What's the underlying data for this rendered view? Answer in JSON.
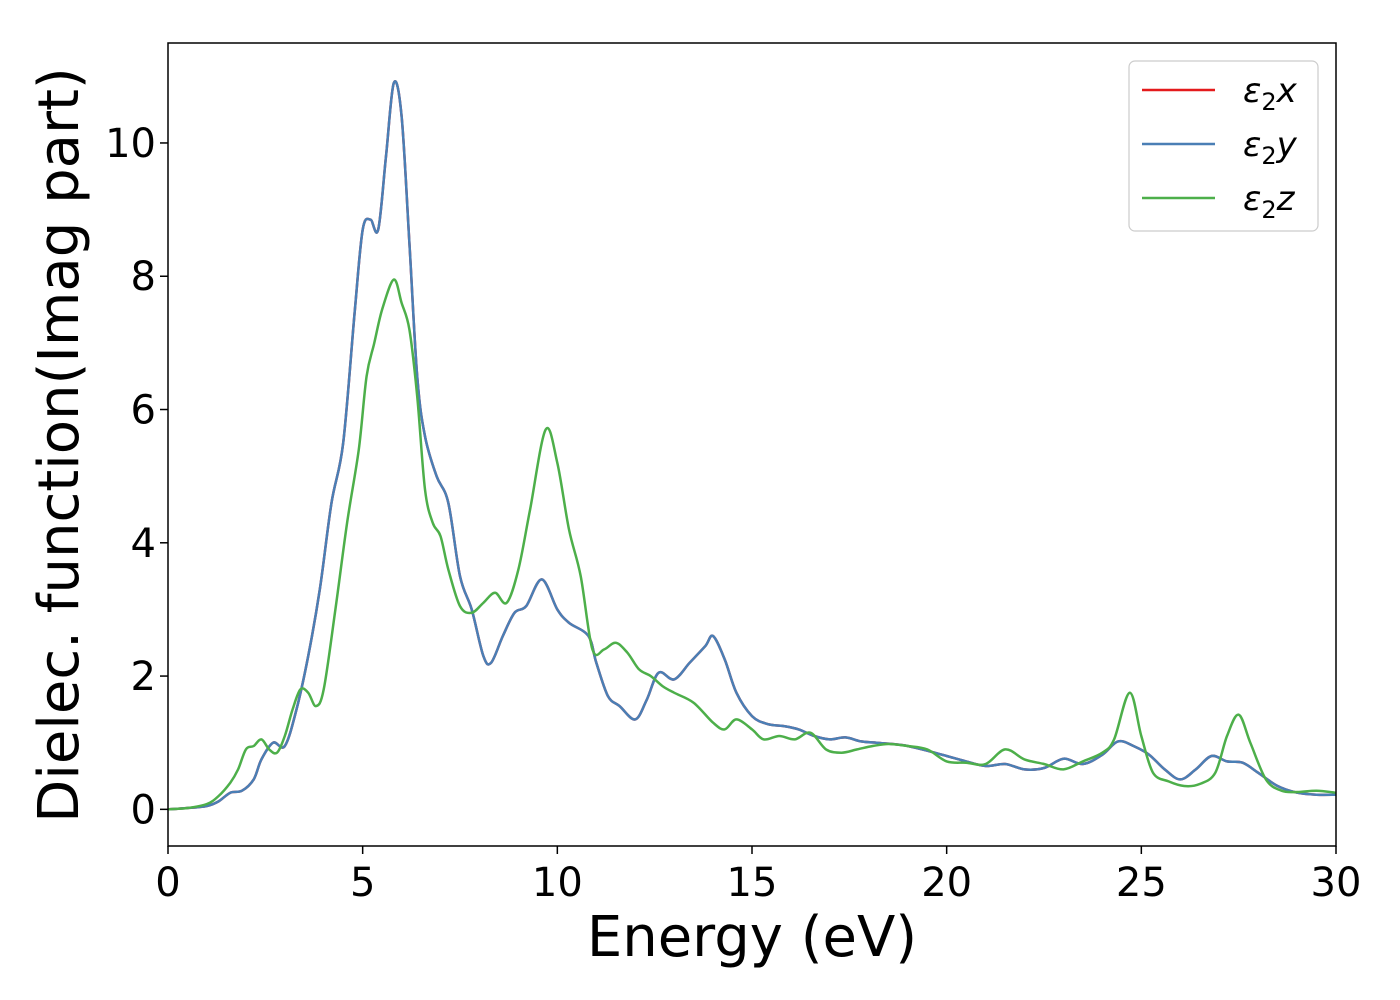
{
  "chart_data": {
    "type": "line",
    "title": "",
    "xlabel": "Energy (eV)",
    "ylabel": "Dielec. function(Imag part)",
    "xlim": [
      0,
      30
    ],
    "ylim": [
      -0.55,
      11.5
    ],
    "xticks": [
      0,
      5,
      10,
      15,
      20,
      25,
      30
    ],
    "yticks": [
      0,
      2,
      4,
      6,
      8,
      10
    ],
    "grid": false,
    "legend_position": "top-right",
    "series": [
      {
        "name": "ε2x",
        "legend_main": "ε",
        "legend_sub": "2",
        "legend_suffix": "x",
        "color": "#e41a1c",
        "x": [
          0,
          0.5,
          1.0,
          1.3,
          1.6,
          1.9,
          2.2,
          2.4,
          2.7,
          3.0,
          3.3,
          3.6,
          3.9,
          4.2,
          4.5,
          4.8,
          5.0,
          5.2,
          5.4,
          5.6,
          5.8,
          6.0,
          6.2,
          6.4,
          6.6,
          6.9,
          7.2,
          7.5,
          7.8,
          8.1,
          8.3,
          8.6,
          8.9,
          9.2,
          9.6,
          10.0,
          10.3,
          10.8,
          11.0,
          11.3,
          11.6,
          12.0,
          12.3,
          12.6,
          13.0,
          13.4,
          13.8,
          14.0,
          14.3,
          14.6,
          15.0,
          15.4,
          15.8,
          16.2,
          16.6,
          17.0,
          17.4,
          17.8,
          18.2,
          18.6,
          19.0,
          19.5,
          20.0,
          20.5,
          21.0,
          21.5,
          22.0,
          22.5,
          23.0,
          23.5,
          24.0,
          24.4,
          24.8,
          25.2,
          25.6,
          26.0,
          26.4,
          26.8,
          27.2,
          27.6,
          28.0,
          28.5,
          29.0,
          29.5,
          30.0
        ],
        "y": [
          0,
          0.02,
          0.05,
          0.12,
          0.25,
          0.28,
          0.45,
          0.75,
          1.0,
          0.95,
          1.5,
          2.3,
          3.3,
          4.6,
          5.5,
          7.5,
          8.7,
          8.85,
          8.7,
          9.8,
          10.9,
          10.4,
          8.5,
          6.5,
          5.6,
          5.0,
          4.6,
          3.5,
          3.0,
          2.3,
          2.2,
          2.6,
          2.95,
          3.05,
          3.45,
          3.0,
          2.8,
          2.6,
          2.2,
          1.7,
          1.55,
          1.35,
          1.65,
          2.05,
          1.95,
          2.2,
          2.45,
          2.6,
          2.25,
          1.75,
          1.4,
          1.28,
          1.25,
          1.2,
          1.1,
          1.05,
          1.08,
          1.02,
          1.0,
          0.98,
          0.95,
          0.88,
          0.8,
          0.72,
          0.65,
          0.68,
          0.6,
          0.62,
          0.76,
          0.68,
          0.82,
          1.02,
          0.95,
          0.82,
          0.6,
          0.45,
          0.6,
          0.8,
          0.72,
          0.7,
          0.55,
          0.35,
          0.25,
          0.22,
          0.22
        ]
      },
      {
        "name": "ε2y",
        "legend_main": "ε",
        "legend_sub": "2",
        "legend_suffix": "y",
        "color": "#4a7fb5",
        "x": [
          0,
          0.5,
          1.0,
          1.3,
          1.6,
          1.9,
          2.2,
          2.4,
          2.7,
          3.0,
          3.3,
          3.6,
          3.9,
          4.2,
          4.5,
          4.8,
          5.0,
          5.2,
          5.4,
          5.6,
          5.8,
          6.0,
          6.2,
          6.4,
          6.6,
          6.9,
          7.2,
          7.5,
          7.8,
          8.1,
          8.3,
          8.6,
          8.9,
          9.2,
          9.6,
          10.0,
          10.3,
          10.8,
          11.0,
          11.3,
          11.6,
          12.0,
          12.3,
          12.6,
          13.0,
          13.4,
          13.8,
          14.0,
          14.3,
          14.6,
          15.0,
          15.4,
          15.8,
          16.2,
          16.6,
          17.0,
          17.4,
          17.8,
          18.2,
          18.6,
          19.0,
          19.5,
          20.0,
          20.5,
          21.0,
          21.5,
          22.0,
          22.5,
          23.0,
          23.5,
          24.0,
          24.4,
          24.8,
          25.2,
          25.6,
          26.0,
          26.4,
          26.8,
          27.2,
          27.6,
          28.0,
          28.5,
          29.0,
          29.5,
          30.0
        ],
        "y": [
          0,
          0.02,
          0.05,
          0.12,
          0.25,
          0.28,
          0.45,
          0.75,
          1.0,
          0.95,
          1.5,
          2.3,
          3.3,
          4.6,
          5.5,
          7.5,
          8.7,
          8.85,
          8.7,
          9.8,
          10.9,
          10.4,
          8.5,
          6.5,
          5.6,
          5.0,
          4.6,
          3.5,
          3.0,
          2.3,
          2.2,
          2.6,
          2.95,
          3.05,
          3.45,
          3.0,
          2.8,
          2.6,
          2.2,
          1.7,
          1.55,
          1.35,
          1.65,
          2.05,
          1.95,
          2.2,
          2.45,
          2.6,
          2.25,
          1.75,
          1.4,
          1.28,
          1.25,
          1.2,
          1.1,
          1.05,
          1.08,
          1.02,
          1.0,
          0.98,
          0.95,
          0.88,
          0.8,
          0.72,
          0.65,
          0.68,
          0.6,
          0.62,
          0.76,
          0.68,
          0.82,
          1.02,
          0.95,
          0.82,
          0.6,
          0.45,
          0.6,
          0.8,
          0.72,
          0.7,
          0.55,
          0.35,
          0.25,
          0.22,
          0.22
        ]
      },
      {
        "name": "ε2z",
        "legend_main": "ε",
        "legend_sub": "2",
        "legend_suffix": "z",
        "color": "#4daf4a",
        "x": [
          0,
          0.5,
          1.0,
          1.3,
          1.6,
          1.8,
          2.0,
          2.2,
          2.4,
          2.6,
          2.8,
          3.0,
          3.2,
          3.4,
          3.6,
          3.8,
          4.0,
          4.3,
          4.6,
          4.9,
          5.1,
          5.3,
          5.5,
          5.8,
          6.0,
          6.2,
          6.4,
          6.6,
          6.8,
          7.0,
          7.2,
          7.5,
          7.8,
          8.1,
          8.4,
          8.7,
          9.0,
          9.3,
          9.7,
          10.0,
          10.3,
          10.6,
          10.9,
          11.2,
          11.5,
          11.8,
          12.1,
          12.4,
          12.7,
          13.0,
          13.5,
          14.0,
          14.3,
          14.6,
          15.0,
          15.3,
          15.7,
          16.1,
          16.5,
          16.9,
          17.3,
          17.7,
          18.1,
          18.5,
          19.0,
          19.5,
          20.0,
          20.5,
          21.0,
          21.5,
          22.0,
          22.5,
          23.0,
          23.5,
          24.0,
          24.3,
          24.7,
          25.0,
          25.3,
          25.7,
          26.1,
          26.5,
          26.9,
          27.2,
          27.5,
          27.8,
          28.2,
          28.6,
          29.0,
          29.5,
          30.0
        ],
        "y": [
          0,
          0.02,
          0.08,
          0.2,
          0.4,
          0.6,
          0.9,
          0.95,
          1.05,
          0.9,
          0.85,
          1.1,
          1.5,
          1.8,
          1.75,
          1.55,
          1.8,
          3.0,
          4.3,
          5.4,
          6.5,
          7.0,
          7.5,
          7.95,
          7.6,
          7.2,
          6.2,
          4.8,
          4.3,
          4.1,
          3.6,
          3.05,
          2.95,
          3.1,
          3.25,
          3.1,
          3.6,
          4.5,
          5.7,
          5.2,
          4.2,
          3.5,
          2.4,
          2.4,
          2.5,
          2.35,
          2.1,
          2.0,
          1.85,
          1.75,
          1.6,
          1.3,
          1.2,
          1.35,
          1.2,
          1.05,
          1.1,
          1.05,
          1.15,
          0.9,
          0.85,
          0.9,
          0.95,
          0.98,
          0.95,
          0.9,
          0.72,
          0.7,
          0.68,
          0.9,
          0.75,
          0.68,
          0.6,
          0.72,
          0.85,
          1.05,
          1.75,
          1.1,
          0.55,
          0.42,
          0.35,
          0.38,
          0.55,
          1.1,
          1.42,
          1.0,
          0.45,
          0.28,
          0.26,
          0.28,
          0.25
        ]
      }
    ]
  }
}
